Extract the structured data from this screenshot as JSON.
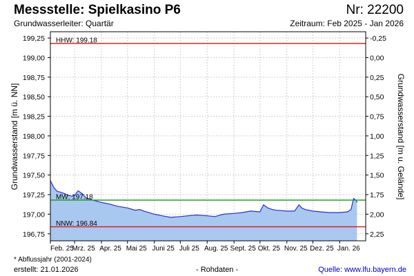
{
  "header": {
    "title": "Messstelle: Spielkasino P6",
    "number": "Nr: 22200",
    "subtitle": "Grundwasserleiter: Quartär",
    "period": "Zeitraum: Feb 2025 - Jan 2026"
  },
  "footer": {
    "footnote": "* Abflussjahr (2001-2024)",
    "created": "erstellt:  21.01.2026",
    "status": "- Rohdaten -",
    "source": "Quelle: www.lfu.bayern.de"
  },
  "colors": {
    "series_line": "#2a2adb",
    "series_fill": "#a8c8f0",
    "hhw_line": "#e02020",
    "mw_line": "#20a020",
    "nnw_line": "#e02020",
    "grid": "#cfcfcf"
  },
  "chart_data": {
    "type": "area",
    "title": "Messstelle: Spielkasino P6",
    "ylabel": "Grundwasserstand [m ü. NN]",
    "ylabel_right": "Grundwasserstand [m u. Gelände]",
    "ylim": [
      196.66,
      199.33
    ],
    "yticks": [
      "199,25",
      "199,00",
      "198,75",
      "198,50",
      "198,25",
      "198,00",
      "197,75",
      "197,50",
      "197,25",
      "197,00",
      "196,75"
    ],
    "ytick_values": [
      199.25,
      199.0,
      198.75,
      198.5,
      198.25,
      198.0,
      197.75,
      197.5,
      197.25,
      197.0,
      196.75
    ],
    "right_yticks": [
      "-0,25",
      "0,00",
      "0,25",
      "0,50",
      "0,75",
      "1,00",
      "1,25",
      "1,50",
      "1,75",
      "2,00",
      "2,25"
    ],
    "right_zero_level": 199.0,
    "xlim": [
      "2025-02-01",
      "2026-01-31"
    ],
    "xticks": [
      "Feb. 25",
      "Mrz. 25",
      "Apr. 25",
      "Mai 25",
      "Juni 25",
      "Juli 25",
      "Aug. 25",
      "Sept. 25",
      "Okt. 25",
      "Nov. 25",
      "Dez. 25",
      "Jan. 26"
    ],
    "xtick_dates": [
      "2025-02-01",
      "2025-03-01",
      "2025-04-01",
      "2025-05-01",
      "2025-06-01",
      "2025-07-01",
      "2025-08-01",
      "2025-09-01",
      "2025-10-01",
      "2025-11-01",
      "2025-12-01",
      "2026-01-01"
    ],
    "grid": true,
    "reference_lines": [
      {
        "label": "HHW: 199.18",
        "value": 199.18,
        "color": "#e02020"
      },
      {
        "label": "MW: 197.18",
        "value": 197.18,
        "color": "#20a020"
      },
      {
        "label": "NNW: 196.84",
        "value": 196.84,
        "color": "#e02020"
      }
    ],
    "series": [
      {
        "x": [
          "2025-02-01",
          "2025-02-05",
          "2025-02-09",
          "2025-02-13",
          "2025-02-18",
          "2025-02-22",
          "2025-02-26",
          "2025-03-01",
          "2025-03-05",
          "2025-03-10",
          "2025-03-14",
          "2025-03-22",
          "2025-04-01",
          "2025-04-10",
          "2025-04-20",
          "2025-05-01",
          "2025-05-10",
          "2025-05-15",
          "2025-05-20",
          "2025-06-01",
          "2025-06-10",
          "2025-06-20",
          "2025-07-01",
          "2025-07-10",
          "2025-07-20",
          "2025-08-01",
          "2025-08-10",
          "2025-08-20",
          "2025-09-01",
          "2025-09-10",
          "2025-09-20",
          "2025-10-01",
          "2025-10-05",
          "2025-10-10",
          "2025-10-15",
          "2025-10-20",
          "2025-11-01",
          "2025-11-10",
          "2025-11-15",
          "2025-11-18",
          "2025-11-22",
          "2025-12-01",
          "2025-12-10",
          "2025-12-20",
          "2026-01-01",
          "2026-01-10",
          "2026-01-14",
          "2026-01-17",
          "2026-01-20",
          "2026-01-21"
        ],
        "values": [
          197.43,
          197.34,
          197.29,
          197.28,
          197.26,
          197.24,
          197.23,
          197.24,
          197.3,
          197.26,
          197.21,
          197.18,
          197.15,
          197.13,
          197.1,
          197.08,
          197.05,
          197.06,
          197.04,
          197.0,
          196.98,
          196.96,
          196.97,
          196.98,
          196.99,
          196.98,
          196.97,
          197.0,
          197.01,
          197.02,
          197.04,
          197.03,
          197.12,
          197.08,
          197.06,
          197.05,
          197.04,
          197.04,
          197.12,
          197.08,
          197.06,
          197.04,
          197.03,
          197.02,
          197.02,
          197.03,
          197.06,
          197.2,
          197.18,
          197.15
        ]
      }
    ]
  }
}
